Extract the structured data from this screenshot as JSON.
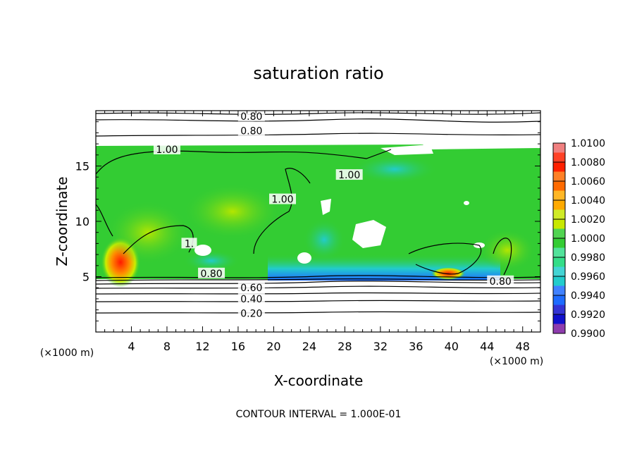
{
  "chart_data": {
    "type": "heatmap",
    "title": "saturation ratio",
    "xlabel": "X-coordinate",
    "ylabel": "Z-coordinate",
    "x_unit": "(×1000 m)",
    "x_unit_right": "(×1000 m)",
    "footer": "CONTOUR INTERVAL = 1.000E-01",
    "xlim": [
      0,
      50
    ],
    "ylim": [
      0,
      20
    ],
    "x_ticks": [
      "4",
      "8",
      "12",
      "16",
      "20",
      "24",
      "28",
      "32",
      "36",
      "40",
      "44",
      "48"
    ],
    "y_ticks": [
      "5",
      "10",
      "15"
    ],
    "colorbar": {
      "levels": [
        "1.0100",
        "1.0080",
        "1.0060",
        "1.0040",
        "1.0020",
        "1.0000",
        "0.9980",
        "0.9960",
        "0.9940",
        "0.9920",
        "0.9900"
      ],
      "colors": [
        "#f08080",
        "#ff2000",
        "#ff6a00",
        "#ffaa00",
        "#c8e800",
        "#33cc33",
        "#33dd88",
        "#22cccc",
        "#1e6bff",
        "#1010cc",
        "#7a1aa0"
      ]
    },
    "contour_labels": [
      {
        "text": "0.80",
        "x": 17.5,
        "z": 19.5
      },
      {
        "text": "0.80",
        "x": 17.5,
        "z": 18.2
      },
      {
        "text": "1.00",
        "x": 8,
        "z": 16.5
      },
      {
        "text": "1.00",
        "x": 28.5,
        "z": 14.2
      },
      {
        "text": "1.00",
        "x": 21,
        "z": 12
      },
      {
        "text": "1.",
        "x": 10.5,
        "z": 8
      },
      {
        "text": "0.80",
        "x": 13,
        "z": 5.3
      },
      {
        "text": "0.80",
        "x": 45.5,
        "z": 4.6
      },
      {
        "text": "0.60",
        "x": 17.5,
        "z": 4
      },
      {
        "text": "0.40",
        "x": 17.5,
        "z": 3
      },
      {
        "text": "0.20",
        "x": 17.5,
        "z": 1.7
      }
    ]
  }
}
